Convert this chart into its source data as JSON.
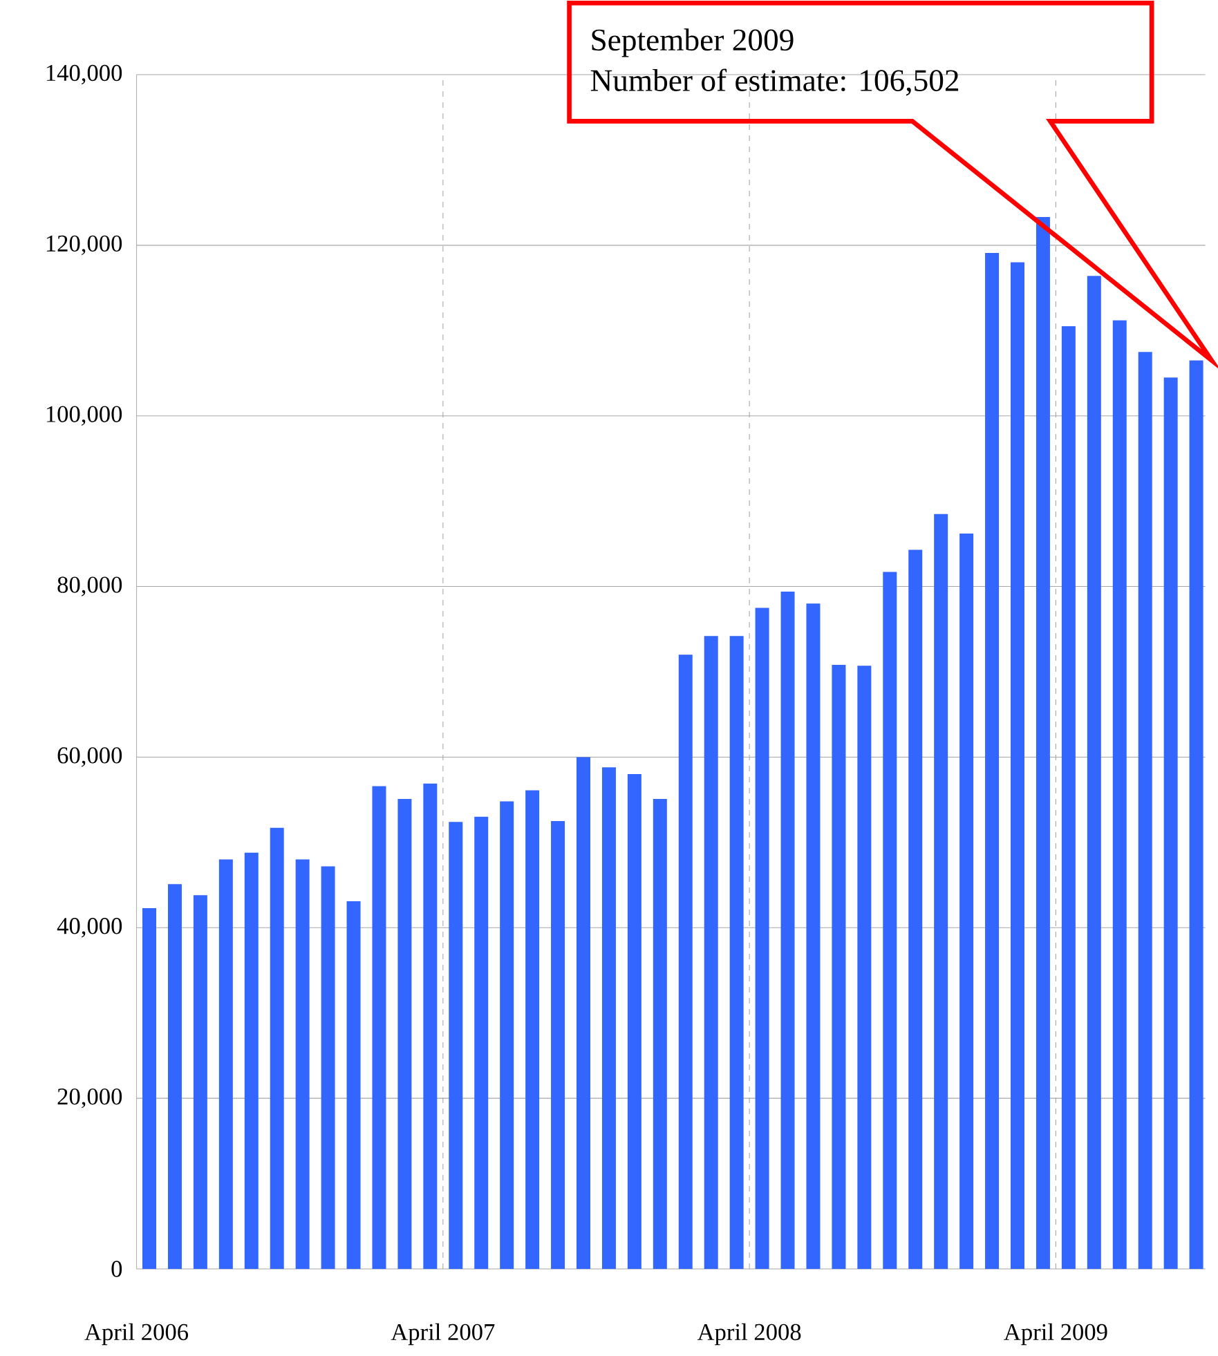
{
  "chart_data": {
    "type": "bar",
    "categories": [
      "April 2006",
      null,
      null,
      null,
      null,
      null,
      null,
      null,
      null,
      null,
      null,
      null,
      "April 2007",
      null,
      null,
      null,
      null,
      null,
      null,
      null,
      null,
      null,
      null,
      null,
      "April 2008",
      null,
      null,
      null,
      null,
      null,
      null,
      null,
      null,
      null,
      null,
      null,
      "April 2009",
      null,
      null,
      null,
      null,
      null
    ],
    "values": [
      42300,
      45100,
      43800,
      48000,
      48800,
      51700,
      48000,
      47200,
      43100,
      56600,
      55100,
      56900,
      52400,
      53000,
      54800,
      56100,
      52500,
      60000,
      58800,
      58000,
      55100,
      72000,
      74200,
      74200,
      77500,
      79400,
      78000,
      70800,
      70700,
      81700,
      84300,
      88500,
      86200,
      119100,
      118000,
      123300,
      110500,
      116400,
      111200,
      107500,
      104500,
      106502
    ],
    "color": "#3366ff",
    "ylim": [
      0,
      140000
    ],
    "yticks": [
      {
        "value": 0,
        "label": "0"
      },
      {
        "value": 20000,
        "label": "20,000"
      },
      {
        "value": 40000,
        "label": "40,000"
      },
      {
        "value": 60000,
        "label": "60,000"
      },
      {
        "value": 80000,
        "label": "80,000"
      },
      {
        "value": 100000,
        "label": "100,000"
      },
      {
        "value": 120000,
        "label": "120,000"
      },
      {
        "value": 140000,
        "label": "140,000"
      }
    ],
    "grid": true,
    "annotations": [
      "September 2009",
      "Number of estimate: 106,502"
    ]
  }
}
